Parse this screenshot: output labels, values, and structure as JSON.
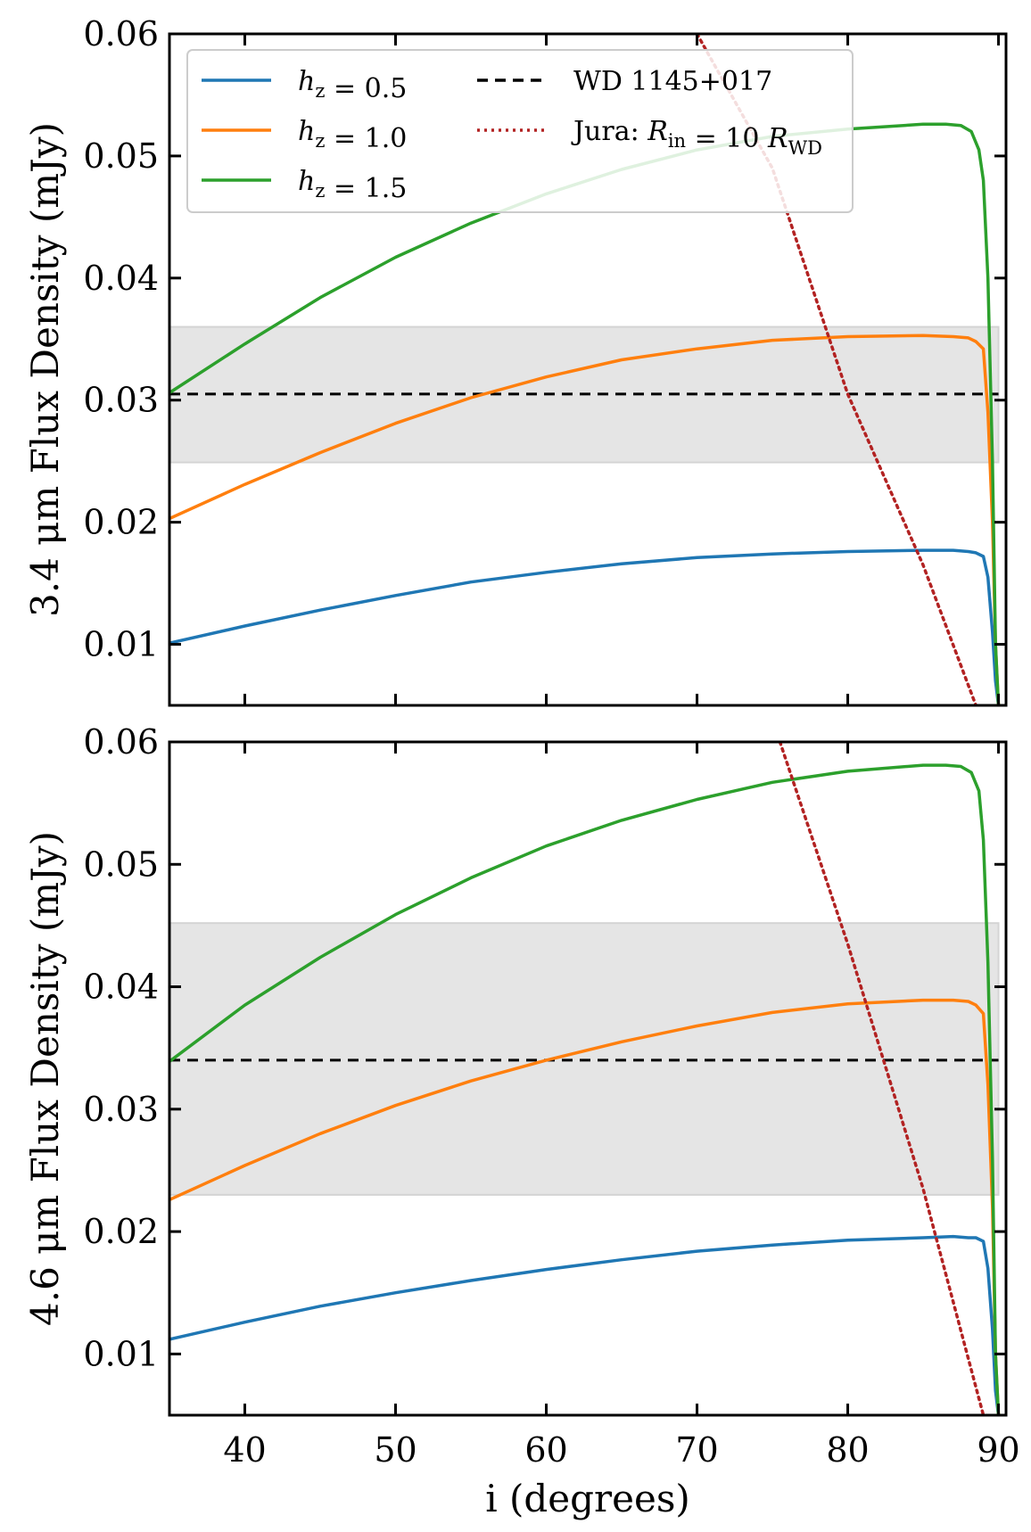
{
  "chart_data": [
    {
      "type": "line",
      "ylabel": "3.4 μm Flux Density (mJy)",
      "xlabel": "",
      "xlim": [
        35,
        90.5
      ],
      "ylim": [
        0.005,
        0.06
      ],
      "xticks": [
        "40",
        "50",
        "60",
        "70",
        "80",
        "90"
      ],
      "show_xtick_labels": false,
      "yticks": [
        "0.01",
        "0.02",
        "0.03",
        "0.04",
        "0.05",
        "0.06"
      ],
      "grid": false,
      "legend": {
        "placement": "top-left",
        "entries": [
          {
            "label": "h_z = 0.5",
            "color": "#1f77b4",
            "style": "solid"
          },
          {
            "label": "h_z = 1.0",
            "color": "#ff7f0e",
            "style": "solid"
          },
          {
            "label": "h_z = 1.5",
            "color": "#2ca02c",
            "style": "solid"
          },
          {
            "label": "WD 1145+017",
            "color": "#000000",
            "style": "dashed"
          },
          {
            "label": "Jura: R_in = 10 R_WD",
            "color": "#b22222",
            "style": "dotted"
          }
        ]
      },
      "band": {
        "ymin": 0.0249,
        "ymax": 0.036,
        "xmin": 35,
        "xmax": 90,
        "color": "#e5e5e5"
      },
      "hline": {
        "y": 0.0305,
        "xmin": 35,
        "xmax": 90,
        "color": "#000000",
        "style": "dashed",
        "name": "WD 1145+017"
      },
      "series": [
        {
          "name": "h_z = 0.5",
          "color": "#1f77b4",
          "style": "solid",
          "x": [
            35,
            40,
            45,
            50,
            55,
            60,
            65,
            70,
            75,
            80,
            85,
            87,
            88,
            88.5,
            89,
            89.3,
            89.6,
            89.8,
            90
          ],
          "y": [
            0.0101,
            0.0115,
            0.0128,
            0.014,
            0.0151,
            0.0159,
            0.0166,
            0.0171,
            0.0174,
            0.0176,
            0.0177,
            0.0177,
            0.0176,
            0.0175,
            0.0172,
            0.0155,
            0.011,
            0.007,
            0.005
          ]
        },
        {
          "name": "h_z = 1.0",
          "color": "#ff7f0e",
          "style": "solid",
          "x": [
            35,
            40,
            45,
            50,
            55,
            60,
            65,
            70,
            75,
            80,
            85,
            87,
            88,
            88.5,
            89,
            89.3,
            89.6,
            89.8,
            90
          ],
          "y": [
            0.0203,
            0.0231,
            0.0257,
            0.0281,
            0.0302,
            0.0319,
            0.0333,
            0.0342,
            0.0349,
            0.0352,
            0.0353,
            0.0352,
            0.0351,
            0.0348,
            0.0342,
            0.029,
            0.02,
            0.01,
            0.005
          ]
        },
        {
          "name": "h_z = 1.5",
          "color": "#2ca02c",
          "style": "solid",
          "x": [
            35,
            40,
            45,
            50,
            55,
            60,
            65,
            70,
            75,
            80,
            85,
            86.5,
            87.5,
            88.2,
            88.7,
            89,
            89.3,
            89.6,
            89.8,
            90
          ],
          "y": [
            0.0306,
            0.0346,
            0.0384,
            0.0417,
            0.0445,
            0.0469,
            0.0489,
            0.0505,
            0.0516,
            0.0522,
            0.0526,
            0.0526,
            0.0525,
            0.052,
            0.0505,
            0.048,
            0.04,
            0.025,
            0.01,
            0.005
          ]
        },
        {
          "name": "Jura: R_in = 10 R_WD",
          "color": "#b22222",
          "style": "dotted",
          "x": [
            70,
            75,
            80,
            85,
            88.5
          ],
          "y": [
            0.06,
            0.049,
            0.0305,
            0.0165,
            0.005
          ]
        }
      ]
    },
    {
      "type": "line",
      "ylabel": "4.6 μm Flux Density (mJy)",
      "xlabel": "i (degrees)",
      "xlim": [
        35,
        90.5
      ],
      "ylim": [
        0.005,
        0.06
      ],
      "xticks": [
        "40",
        "50",
        "60",
        "70",
        "80",
        "90"
      ],
      "show_xtick_labels": true,
      "yticks": [
        "0.01",
        "0.02",
        "0.03",
        "0.04",
        "0.05",
        "0.06"
      ],
      "grid": false,
      "band": {
        "ymin": 0.023,
        "ymax": 0.0452,
        "xmin": 35,
        "xmax": 90,
        "color": "#e5e5e5"
      },
      "hline": {
        "y": 0.034,
        "xmin": 35,
        "xmax": 90,
        "color": "#000000",
        "style": "dashed",
        "name": "WD 1145+017"
      },
      "series": [
        {
          "name": "h_z = 0.5",
          "color": "#1f77b4",
          "style": "solid",
          "x": [
            35,
            40,
            45,
            50,
            55,
            60,
            65,
            70,
            75,
            80,
            85,
            87,
            88,
            88.5,
            89,
            89.3,
            89.6,
            89.8,
            90
          ],
          "y": [
            0.0112,
            0.0126,
            0.0139,
            0.015,
            0.016,
            0.0169,
            0.0177,
            0.0184,
            0.0189,
            0.0193,
            0.0195,
            0.0196,
            0.0195,
            0.0195,
            0.0192,
            0.017,
            0.012,
            0.007,
            0.005
          ]
        },
        {
          "name": "h_z = 1.0",
          "color": "#ff7f0e",
          "style": "solid",
          "x": [
            35,
            40,
            45,
            50,
            55,
            60,
            65,
            70,
            75,
            80,
            85,
            87,
            88,
            88.5,
            89,
            89.3,
            89.6,
            89.8,
            90
          ],
          "y": [
            0.0226,
            0.0254,
            0.028,
            0.0303,
            0.0323,
            0.034,
            0.0355,
            0.0368,
            0.0379,
            0.0386,
            0.0389,
            0.0389,
            0.0388,
            0.0385,
            0.0378,
            0.032,
            0.022,
            0.01,
            0.005
          ]
        },
        {
          "name": "h_z = 1.5",
          "color": "#2ca02c",
          "style": "solid",
          "x": [
            35,
            40,
            45,
            50,
            55,
            60,
            65,
            70,
            75,
            80,
            85,
            86.5,
            87.5,
            88.2,
            88.7,
            89,
            89.3,
            89.6,
            89.8,
            90
          ],
          "y": [
            0.0339,
            0.0385,
            0.0424,
            0.0459,
            0.0489,
            0.0515,
            0.0536,
            0.0553,
            0.0567,
            0.0576,
            0.0581,
            0.0581,
            0.058,
            0.0575,
            0.056,
            0.052,
            0.042,
            0.026,
            0.01,
            0.005
          ]
        },
        {
          "name": "Jura: R_in = 10 R_WD",
          "color": "#b22222",
          "style": "dotted",
          "x": [
            75.5,
            80,
            85,
            89
          ],
          "y": [
            0.06,
            0.0435,
            0.0235,
            0.005
          ]
        }
      ]
    }
  ]
}
